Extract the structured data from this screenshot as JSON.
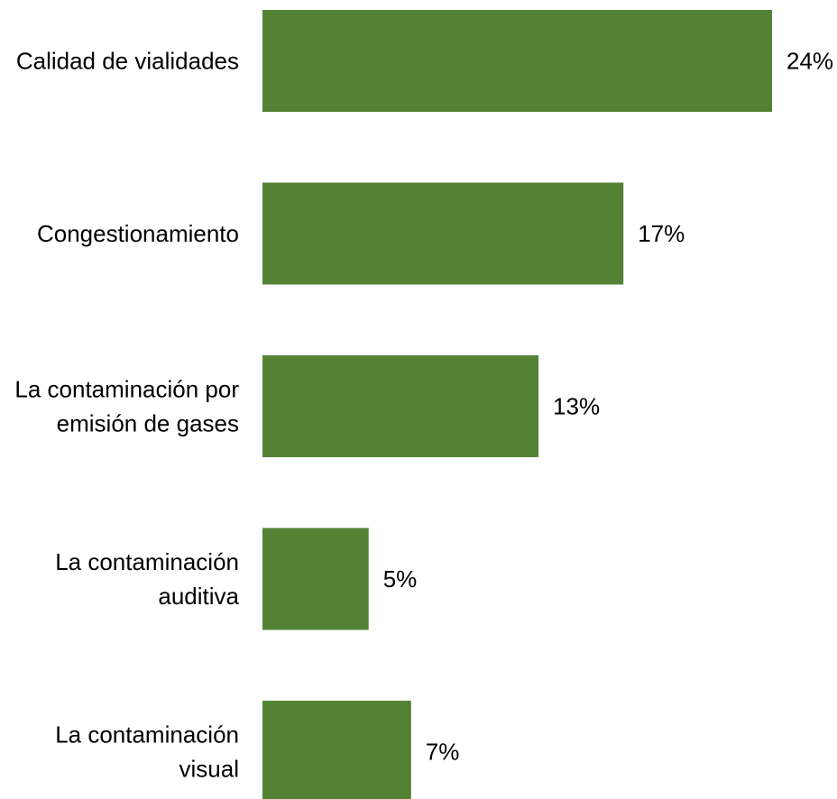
{
  "chart_data": {
    "type": "bar",
    "orientation": "horizontal",
    "categories": [
      [
        "Calidad de vialidades"
      ],
      [
        "Congestionamiento"
      ],
      [
        "La contaminación por",
        "emisión de gases"
      ],
      [
        "La contaminación",
        "auditiva"
      ],
      [
        "La contaminación",
        "visual"
      ]
    ],
    "values": [
      24,
      17,
      13,
      5,
      7
    ],
    "value_labels": [
      "24%",
      "17%",
      "13%",
      "5%",
      "7%"
    ],
    "unit": "%",
    "title": "",
    "xlabel": "",
    "ylabel": "",
    "xlim": [
      0,
      24
    ],
    "grid": false,
    "legend": "none",
    "bar_color": "#548235"
  }
}
